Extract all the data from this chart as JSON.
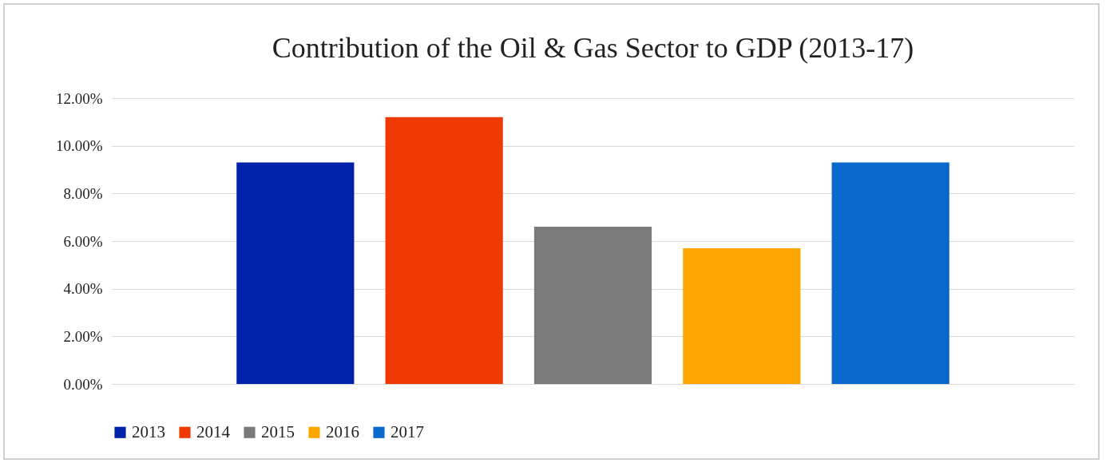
{
  "chart_data": {
    "type": "bar",
    "title": "Contribution of the Oil & Gas Sector to GDP (2013-17)",
    "categories": [
      null
    ],
    "series": [
      {
        "name": "2013",
        "color": "#0022aa",
        "values": [
          9.3
        ]
      },
      {
        "name": "2014",
        "color": "#ee3a00",
        "values": [
          11.2
        ]
      },
      {
        "name": "2015",
        "color": "#7a7a7a",
        "values": [
          6.6
        ]
      },
      {
        "name": "2016",
        "color": "#ffa500",
        "values": [
          5.7
        ]
      },
      {
        "name": "2017",
        "color": "#0868cc",
        "values": [
          9.3
        ]
      }
    ],
    "ylim": [
      0,
      12
    ],
    "yticks": [
      {
        "value": 0,
        "label": "0.00%"
      },
      {
        "value": 2,
        "label": "2.00%"
      },
      {
        "value": 4,
        "label": "4.00%"
      },
      {
        "value": 6,
        "label": "6.00%"
      },
      {
        "value": 8,
        "label": "8.00%"
      },
      {
        "value": 10,
        "label": "10.00%"
      },
      {
        "value": 12,
        "label": "12.00%"
      }
    ],
    "grid": "y",
    "legend": "bottom",
    "tick_labels": "y"
  }
}
